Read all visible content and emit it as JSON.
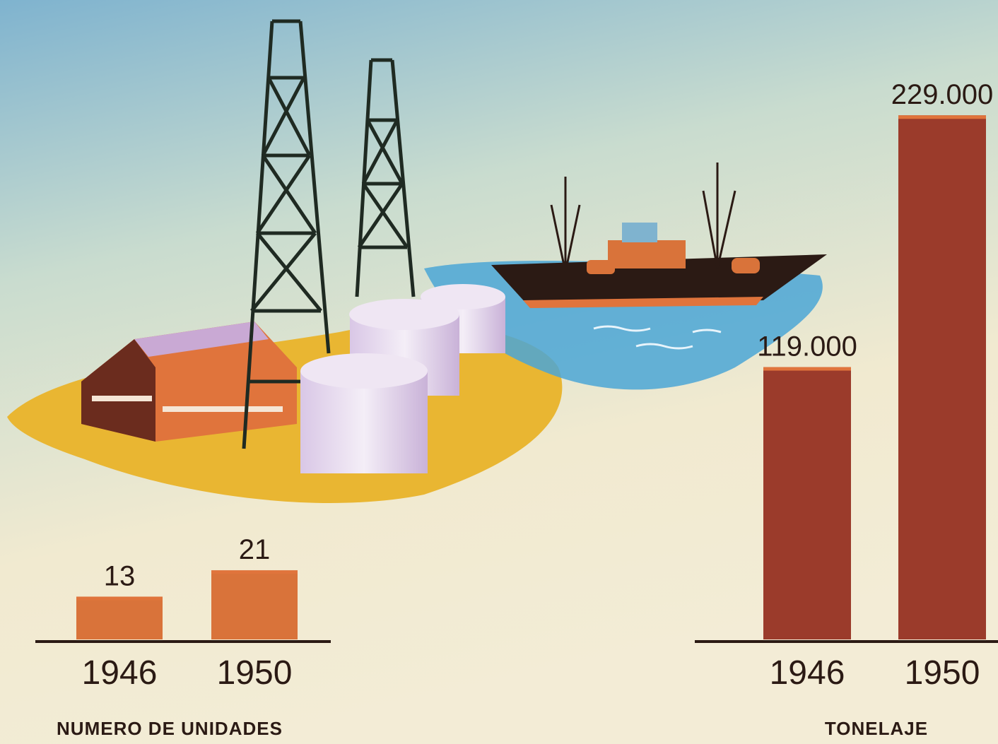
{
  "chart_data": [
    {
      "type": "bar",
      "title": "NUMERO DE UNIDADES",
      "categories": [
        "1946",
        "1950"
      ],
      "values": [
        13,
        21
      ],
      "color": "#d9733a",
      "ylim": [
        0,
        160
      ]
    },
    {
      "type": "bar",
      "title": "TONELAJE",
      "categories": [
        "1946",
        "1950"
      ],
      "values": [
        119000,
        229000
      ],
      "value_labels": [
        "119.000",
        "229.000"
      ],
      "color": "#9b3b2b",
      "ylim": [
        0,
        230000
      ]
    }
  ]
}
